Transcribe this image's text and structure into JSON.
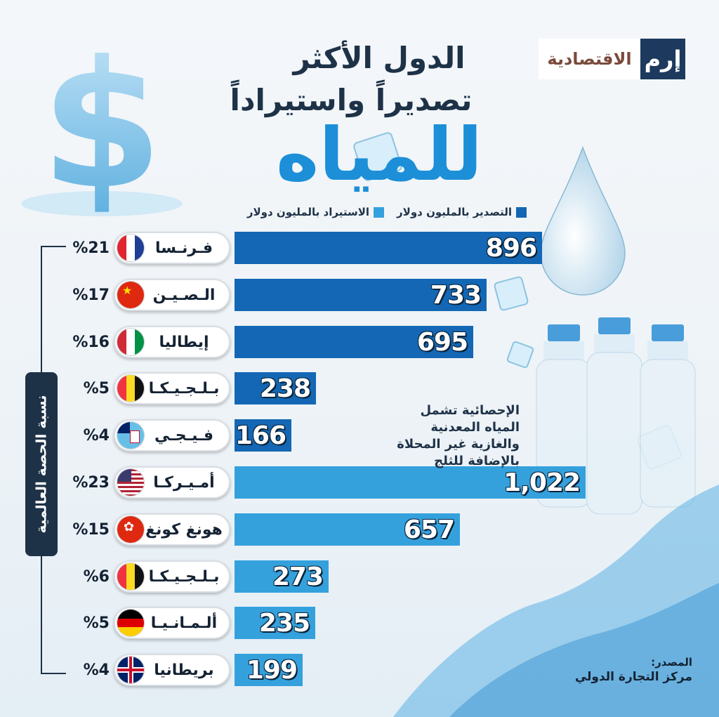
{
  "logo": {
    "mark": "إرم",
    "text": "الاقتصادية"
  },
  "title": {
    "line1": "الدول الأكثر",
    "line2": "تصديراً واستيراداً",
    "line3": "للمياه"
  },
  "legend": {
    "export": "التصدير بالمليون دولار",
    "import": "الاستيراد بالمليون دولار"
  },
  "side_label": "نسبة الحصة العالمية",
  "note": "الإحصائية تشمل المياه المعدنية والغازية غير المحلاة بالإضافة للثلج",
  "source": {
    "heading": "المصدر:",
    "text": "مركز التجارة الدولي"
  },
  "colors": {
    "export": "#1367b4",
    "import": "#34a1dd",
    "title_accent": "#1c8fd8",
    "dark": "#1e3247"
  },
  "chart_data": {
    "type": "bar",
    "orientation": "horizontal",
    "unit": "مليون دولار",
    "rows": [
      {
        "country": "فـرنـسا",
        "share": "%21",
        "value": 896,
        "label": "896",
        "series": "export",
        "flag": "france"
      },
      {
        "country": "الـصـيـن",
        "share": "%17",
        "value": 733,
        "label": "733",
        "series": "export",
        "flag": "china"
      },
      {
        "country": "إيطاليا",
        "share": "%16",
        "value": 695,
        "label": "695",
        "series": "export",
        "flag": "italy"
      },
      {
        "country": "بـلـجـيـكـا",
        "share": "%5",
        "value": 238,
        "label": "238",
        "series": "export",
        "flag": "belgium"
      },
      {
        "country": "فـيـجـي",
        "share": "%4",
        "value": 166,
        "label": "166",
        "series": "export",
        "flag": "fiji"
      },
      {
        "country": "أمـيـركـا",
        "share": "%23",
        "value": 1022,
        "label": "1,022",
        "series": "import",
        "flag": "usa"
      },
      {
        "country": "هونغ كونغ",
        "share": "%15",
        "value": 657,
        "label": "657",
        "series": "import",
        "flag": "hongkong"
      },
      {
        "country": "بـلـجـيـكـا",
        "share": "%6",
        "value": 273,
        "label": "273",
        "series": "import",
        "flag": "belgium"
      },
      {
        "country": "ألـمـانـيـا",
        "share": "%5",
        "value": 235,
        "label": "235",
        "series": "import",
        "flag": "germany"
      },
      {
        "country": "بريطانيا",
        "share": "%4",
        "value": 199,
        "label": "199",
        "series": "import",
        "flag": "uk"
      }
    ]
  }
}
